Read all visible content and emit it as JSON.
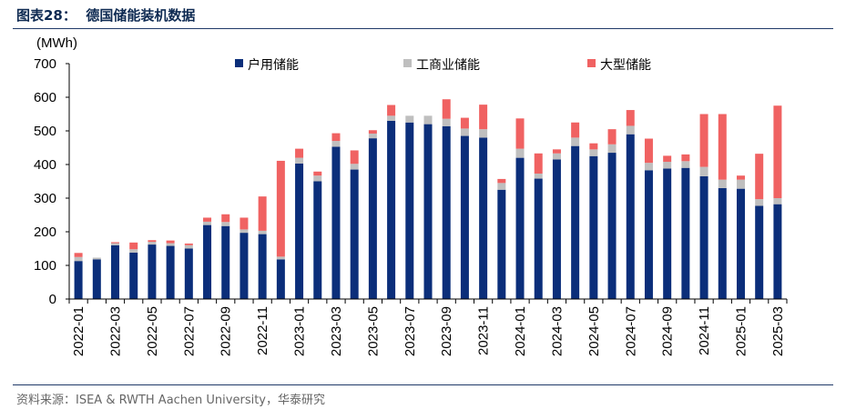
{
  "figure": {
    "title": "图表28：  德国储能装机数据",
    "source": "资料来源：ISEA & RWTH Aachen University，华泰研究"
  },
  "chart_data": {
    "type": "bar",
    "stacked": true,
    "ylabel": "(MWh)",
    "ylim": [
      0,
      700
    ],
    "yticks": [
      0,
      100,
      200,
      300,
      400,
      500,
      600,
      700
    ],
    "legend_position": "top",
    "categories": [
      "2022-01",
      "2022-02",
      "2022-03",
      "2022-04",
      "2022-05",
      "2022-06",
      "2022-07",
      "2022-08",
      "2022-09",
      "2022-10",
      "2022-11",
      "2022-12",
      "2023-01",
      "2023-02",
      "2023-03",
      "2023-04",
      "2023-05",
      "2023-06",
      "2023-07",
      "2023-08",
      "2023-09",
      "2023-10",
      "2023-11",
      "2023-12",
      "2024-01",
      "2024-02",
      "2024-03",
      "2024-04",
      "2024-05",
      "2024-06",
      "2024-07",
      "2024-08",
      "2024-09",
      "2024-10",
      "2024-11",
      "2024-12",
      "2025-01",
      "2025-02",
      "2025-03"
    ],
    "xtick_labels": [
      "2022-01",
      "",
      "2022-03",
      "",
      "2022-05",
      "",
      "2022-07",
      "",
      "2022-09",
      "",
      "2022-11",
      "",
      "2023-01",
      "",
      "2023-03",
      "",
      "2023-05",
      "",
      "2023-07",
      "",
      "2023-09",
      "",
      "2023-11",
      "",
      "2024-01",
      "",
      "2024-03",
      "",
      "2024-05",
      "",
      "2024-07",
      "",
      "2024-09",
      "",
      "2024-11",
      "",
      "2025-01",
      "",
      "2025-03"
    ],
    "series": [
      {
        "name": "户用储能",
        "color": "#0b2e7a",
        "values": [
          113,
          118,
          160,
          138,
          162,
          158,
          150,
          220,
          217,
          197,
          193,
          118,
          403,
          350,
          453,
          385,
          478,
          530,
          525,
          520,
          514,
          485,
          480,
          325,
          420,
          358,
          415,
          455,
          425,
          435,
          490,
          383,
          388,
          390,
          365,
          330,
          328,
          277,
          282
        ]
      },
      {
        "name": "工商业储能",
        "color": "#bfbfbf",
        "values": [
          12,
          5,
          6,
          10,
          8,
          8,
          10,
          10,
          12,
          10,
          10,
          8,
          17,
          17,
          17,
          17,
          14,
          15,
          20,
          25,
          22,
          22,
          25,
          20,
          27,
          15,
          18,
          25,
          20,
          25,
          25,
          22,
          20,
          20,
          28,
          25,
          27,
          20,
          18
        ]
      },
      {
        "name": "大型储能",
        "color": "#f06262",
        "values": [
          12,
          0,
          3,
          20,
          5,
          8,
          5,
          12,
          23,
          35,
          102,
          285,
          27,
          12,
          23,
          40,
          10,
          32,
          0,
          0,
          58,
          32,
          73,
          12,
          90,
          60,
          12,
          45,
          18,
          45,
          47,
          72,
          18,
          20,
          157,
          195,
          12,
          135,
          275
        ]
      }
    ]
  }
}
